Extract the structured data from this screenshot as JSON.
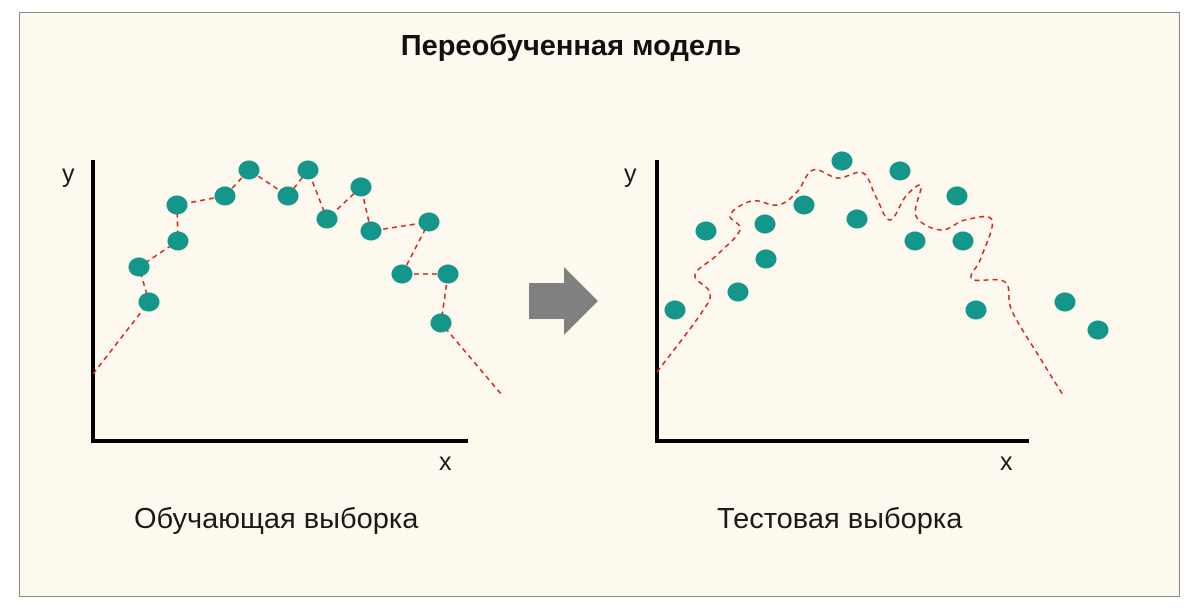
{
  "title": "Переобученная модель",
  "panels": [
    {
      "id": "train",
      "caption": "Обучающая выборка",
      "x_label": "x",
      "y_label": "y",
      "points": [
        [
          249,
          170
        ],
        [
          308,
          170
        ],
        [
          177,
          205
        ],
        [
          225,
          196
        ],
        [
          288,
          196
        ],
        [
          361,
          187
        ],
        [
          327,
          219
        ],
        [
          371,
          231
        ],
        [
          429,
          222
        ],
        [
          178,
          241
        ],
        [
          139,
          267
        ],
        [
          402,
          274
        ],
        [
          448,
          274
        ],
        [
          149,
          302
        ],
        [
          441,
          323
        ]
      ],
      "curve": [
        [
          93,
          374
        ],
        [
          149,
          302
        ],
        [
          139,
          267
        ],
        [
          178,
          241
        ],
        [
          177,
          205
        ],
        [
          225,
          196
        ],
        [
          249,
          170
        ],
        [
          288,
          196
        ],
        [
          308,
          170
        ],
        [
          327,
          219
        ],
        [
          361,
          187
        ],
        [
          371,
          231
        ],
        [
          429,
          222
        ],
        [
          402,
          274
        ],
        [
          448,
          274
        ],
        [
          441,
          323
        ],
        [
          502,
          395
        ]
      ]
    },
    {
      "id": "test",
      "caption": "Тестовая выборка",
      "x_label": "x",
      "y_label": "y",
      "points": [
        [
          842,
          161
        ],
        [
          900,
          171
        ],
        [
          804,
          205
        ],
        [
          706,
          231
        ],
        [
          765,
          224
        ],
        [
          857,
          219
        ],
        [
          957,
          196
        ],
        [
          915,
          241
        ],
        [
          963,
          241
        ],
        [
          766,
          259
        ],
        [
          738,
          292
        ],
        [
          675,
          310
        ],
        [
          976,
          310
        ],
        [
          1065,
          302
        ],
        [
          1098,
          330
        ]
      ],
      "curve": [
        [
          657,
          372
        ],
        [
          700,
          315
        ],
        [
          710,
          293
        ],
        [
          695,
          275
        ],
        [
          717,
          255
        ],
        [
          740,
          230
        ],
        [
          730,
          215
        ],
        [
          752,
          201
        ],
        [
          778,
          205
        ],
        [
          797,
          192
        ],
        [
          813,
          170
        ],
        [
          838,
          178
        ],
        [
          863,
          173
        ],
        [
          876,
          197
        ],
        [
          890,
          220
        ],
        [
          906,
          196
        ],
        [
          921,
          186
        ],
        [
          916,
          216
        ],
        [
          941,
          230
        ],
        [
          965,
          220
        ],
        [
          992,
          220
        ],
        [
          981,
          258
        ],
        [
          972,
          279
        ],
        [
          1005,
          282
        ],
        [
          1012,
          311
        ],
        [
          1040,
          358
        ],
        [
          1063,
          395
        ]
      ]
    }
  ],
  "arrow_color": "#808080",
  "point_color": "#14968a",
  "curve_color": "#d9231f",
  "axis_color": "#000000"
}
